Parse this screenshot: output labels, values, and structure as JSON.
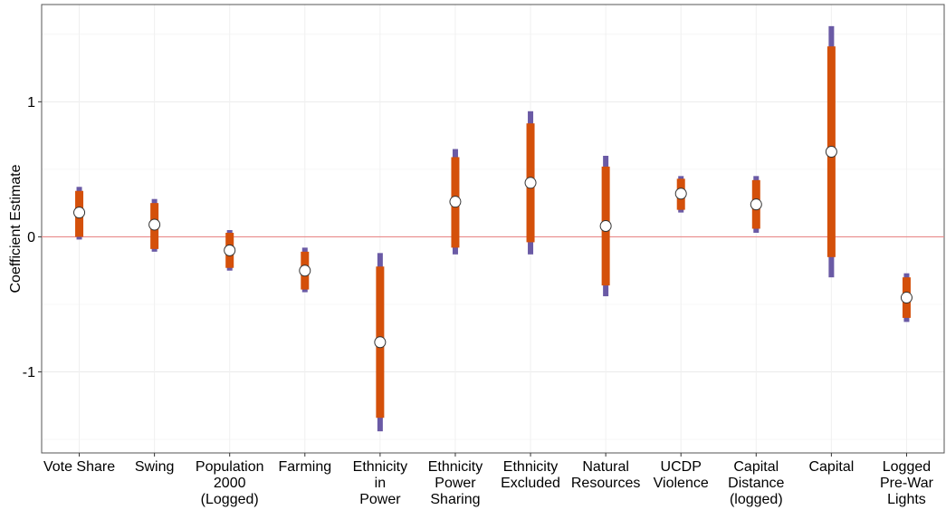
{
  "chart_data": {
    "type": "coefficient-plot",
    "title": "",
    "xlabel": "",
    "ylabel": "Coefficient Estimate",
    "ylim": [
      -1.6,
      1.72
    ],
    "yticks": [
      1,
      0,
      -1
    ],
    "ytick_labels": [
      "1",
      "0",
      "-1"
    ],
    "grid": true,
    "reference_line": 0,
    "colors": {
      "inner_ci": "#d4500a",
      "outer_ci": "#6a5aa5",
      "reference_line": "#e88a8a",
      "point_fill": "#ffffff",
      "point_stroke": "#333333"
    },
    "categories": [
      {
        "label": [
          "Vote Share"
        ],
        "estimate": 0.18,
        "ci_inner": [
          0.0,
          0.34
        ],
        "ci_outer": [
          -0.02,
          0.37
        ]
      },
      {
        "label": [
          "Swing"
        ],
        "estimate": 0.09,
        "ci_inner": [
          -0.09,
          0.25
        ],
        "ci_outer": [
          -0.11,
          0.28
        ]
      },
      {
        "label": [
          "Population",
          "2000",
          "(Logged)"
        ],
        "estimate": -0.1,
        "ci_inner": [
          -0.23,
          0.03
        ],
        "ci_outer": [
          -0.25,
          0.05
        ]
      },
      {
        "label": [
          "Farming"
        ],
        "estimate": -0.25,
        "ci_inner": [
          -0.39,
          -0.11
        ],
        "ci_outer": [
          -0.41,
          -0.08
        ]
      },
      {
        "label": [
          "Ethnicity",
          "in",
          "Power"
        ],
        "estimate": -0.78,
        "ci_inner": [
          -1.34,
          -0.22
        ],
        "ci_outer": [
          -1.44,
          -0.12
        ]
      },
      {
        "label": [
          "Ethnicity",
          "Power",
          "Sharing"
        ],
        "estimate": 0.26,
        "ci_inner": [
          -0.08,
          0.59
        ],
        "ci_outer": [
          -0.13,
          0.65
        ]
      },
      {
        "label": [
          "Ethnicity",
          "Excluded"
        ],
        "estimate": 0.4,
        "ci_inner": [
          -0.04,
          0.84
        ],
        "ci_outer": [
          -0.13,
          0.93
        ]
      },
      {
        "label": [
          "Natural",
          "Resources"
        ],
        "estimate": 0.08,
        "ci_inner": [
          -0.36,
          0.52
        ],
        "ci_outer": [
          -0.44,
          0.6
        ]
      },
      {
        "label": [
          "UCDP",
          "Violence"
        ],
        "estimate": 0.32,
        "ci_inner": [
          0.2,
          0.43
        ],
        "ci_outer": [
          0.18,
          0.45
        ]
      },
      {
        "label": [
          "Capital",
          "Distance",
          "(logged)"
        ],
        "estimate": 0.24,
        "ci_inner": [
          0.06,
          0.42
        ],
        "ci_outer": [
          0.03,
          0.45
        ]
      },
      {
        "label": [
          "Capital"
        ],
        "estimate": 0.63,
        "ci_inner": [
          -0.15,
          1.41
        ],
        "ci_outer": [
          -0.3,
          1.56
        ]
      },
      {
        "label": [
          "Logged",
          "Pre-War",
          "Lights"
        ],
        "estimate": -0.45,
        "ci_inner": [
          -0.6,
          -0.3
        ],
        "ci_outer": [
          -0.63,
          -0.27
        ]
      }
    ]
  }
}
